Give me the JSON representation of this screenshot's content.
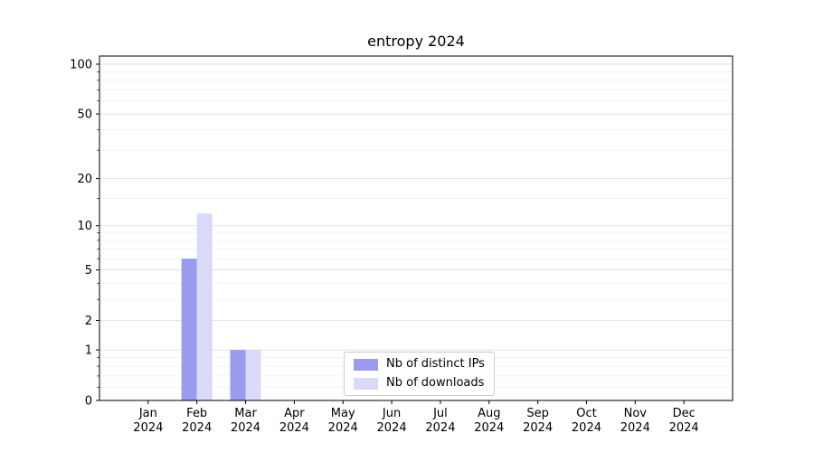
{
  "chart_data": {
    "type": "bar",
    "title": "entropy 2024",
    "categories": [
      "Jan",
      "Feb",
      "Mar",
      "Apr",
      "May",
      "Jun",
      "Jul",
      "Aug",
      "Sep",
      "Oct",
      "Nov",
      "Dec"
    ],
    "category_year": "2024",
    "series": [
      {
        "name": "Nb of distinct IPs",
        "color": "#9a9aee",
        "values": [
          0,
          6,
          1,
          0,
          0,
          0,
          0,
          0,
          0,
          0,
          0,
          0
        ]
      },
      {
        "name": "Nb of downloads",
        "color": "#d9d9f8",
        "values": [
          0,
          12,
          1,
          0,
          0,
          0,
          0,
          0,
          0,
          0,
          0,
          0
        ]
      }
    ],
    "yscale": "log1p",
    "y_ticks": [
      0,
      1,
      2,
      5,
      10,
      20,
      50,
      100
    ],
    "y_minor_ticks": [
      0.2,
      0.4,
      0.6,
      0.8,
      3,
      4,
      6,
      7,
      8,
      9,
      15,
      30,
      40,
      60,
      70,
      80,
      90
    ],
    "ylim": [
      0,
      112
    ],
    "grid": "horizontal",
    "legend": {
      "position": "lower center"
    }
  },
  "style": {
    "bar_distinct_ips": "#9a9aee",
    "bar_downloads": "#d9d9f8",
    "grid_major": "#e0e0e0",
    "grid_minor": "#efefef",
    "axis_color": "#000000",
    "text_color": "#000000",
    "legend_border": "#cccccc",
    "background": "#ffffff"
  }
}
